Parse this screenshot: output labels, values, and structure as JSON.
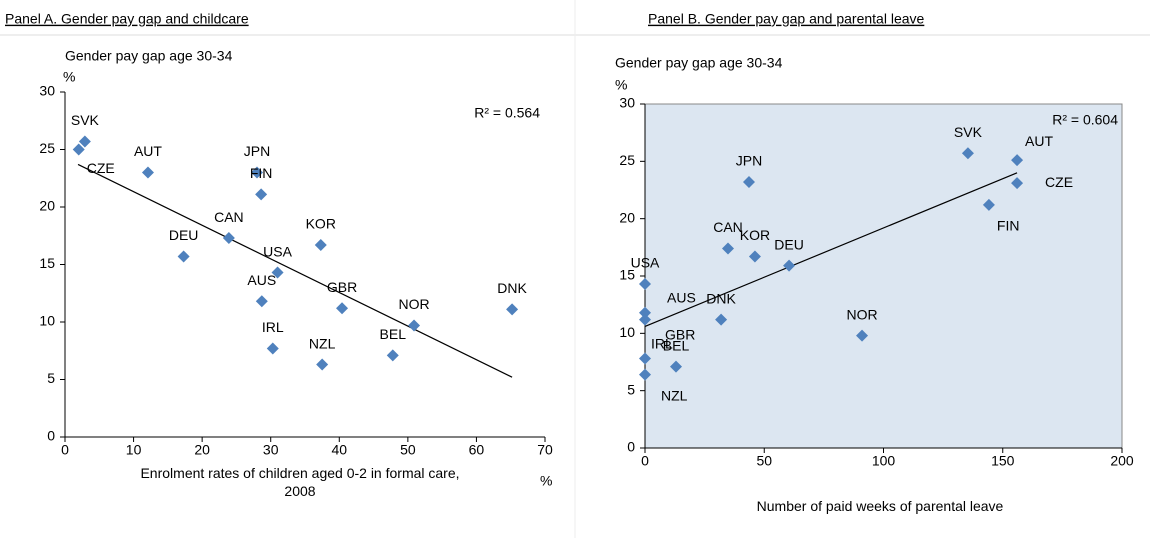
{
  "chart_data": [
    {
      "type": "scatter",
      "title": "Panel A. Gender pay gap and childcare",
      "y_label": "Gender pay gap age 30-34",
      "y_unit": "%",
      "x_label": "Enrolment rates of children aged 0-2 in formal care, 2008",
      "x_unit": "%",
      "annotation": "R² = 0.564",
      "color": "#4f81bd",
      "plot_background": "#ffffff",
      "labels": [
        "SVK",
        "CZE",
        "AUT",
        "JPN",
        "FIN",
        "CAN",
        "DEU",
        "KOR",
        "USA",
        "AUS",
        "GBR",
        "IRL",
        "NZL",
        "BEL",
        "NOR",
        "DNK"
      ],
      "x": [
        2.9,
        2.0,
        12.1,
        28.0,
        28.6,
        23.9,
        17.3,
        37.3,
        31.0,
        28.7,
        40.4,
        30.3,
        37.5,
        47.8,
        50.9,
        65.2
      ],
      "y": [
        25.7,
        25.0,
        23.0,
        23.0,
        21.1,
        17.3,
        15.7,
        16.7,
        14.3,
        11.8,
        11.2,
        7.7,
        6.3,
        7.1,
        9.7,
        11.1
      ],
      "trendline": {
        "x": [
          1.9,
          65.2
        ],
        "y": [
          23.7,
          5.2
        ]
      },
      "xlim": [
        0,
        70
      ],
      "xticks": [
        0,
        10,
        20,
        30,
        40,
        50,
        60,
        70
      ],
      "ylim": [
        0,
        30
      ],
      "yticks": [
        0,
        5,
        10,
        15,
        20,
        25,
        30
      ]
    },
    {
      "type": "scatter",
      "title": "Panel B. Gender pay gap and parental leave",
      "y_label": "Gender pay gap age 30-34",
      "y_unit": "%",
      "x_label": "Number of paid weeks of parental leave",
      "annotation": "R² = 0.604",
      "color": "#4f81bd",
      "plot_background": "#dce6f1",
      "labels": [
        "SVK",
        "AUT",
        "CZE",
        "FIN",
        "JPN",
        "CAN",
        "KOR",
        "DEU",
        "USA",
        "AUS",
        "GBR",
        "DNK",
        "NOR",
        "IRL",
        "BEL",
        "NZL"
      ],
      "x": [
        135.4,
        156.0,
        156.0,
        144.2,
        43.6,
        34.8,
        46.1,
        60.4,
        0,
        0,
        0,
        31.9,
        91.0,
        0,
        13.0,
        0
      ],
      "y": [
        25.7,
        25.1,
        23.1,
        21.2,
        23.2,
        17.4,
        16.7,
        15.9,
        14.3,
        11.8,
        11.2,
        11.2,
        9.8,
        7.8,
        7.1,
        6.4
      ],
      "trendline": {
        "x": [
          0,
          156.0
        ],
        "y": [
          10.6,
          24.0
        ]
      },
      "xlim": [
        0,
        200
      ],
      "xticks": [
        0,
        50,
        100,
        150,
        200
      ],
      "ylim": [
        0,
        30
      ],
      "yticks": [
        0,
        5,
        10,
        15,
        20,
        25,
        30
      ]
    }
  ]
}
